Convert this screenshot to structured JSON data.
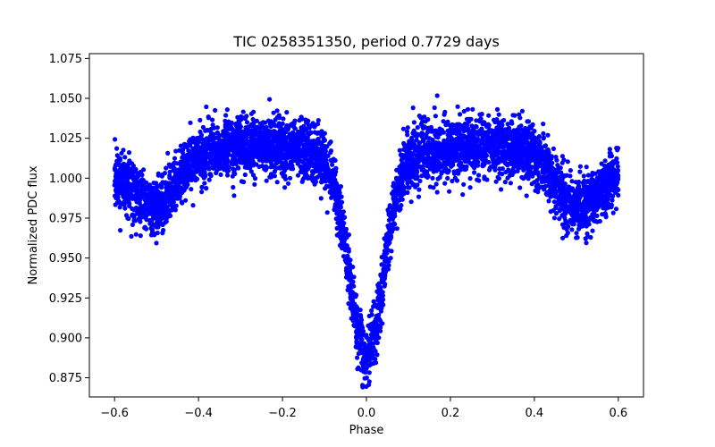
{
  "chart_data": {
    "type": "scatter",
    "title": "TIC 0258351350, period 0.7729 days",
    "xlabel": "Phase",
    "ylabel": "Normalized PDC flux",
    "xlim": [
      -0.66,
      0.66
    ],
    "ylim": [
      0.863,
      1.078
    ],
    "xticks": [
      -0.6,
      -0.4,
      -0.2,
      0.0,
      0.2,
      0.4,
      0.6
    ],
    "xtick_labels": [
      "−0.6",
      "−0.4",
      "−0.2",
      "0.0",
      "0.2",
      "0.4",
      "0.6"
    ],
    "yticks": [
      0.875,
      0.9,
      0.925,
      0.95,
      0.975,
      1.0,
      1.025,
      1.05,
      1.075
    ],
    "ytick_labels": [
      "0.875",
      "0.900",
      "0.925",
      "0.950",
      "0.975",
      "1.000",
      "1.025",
      "1.050",
      "1.075"
    ],
    "grid": false,
    "marker_color": "#0000ff",
    "phase_range": [
      -0.6,
      0.6
    ],
    "light_curve_model": {
      "baseline": 1.012,
      "primary_eclipse": {
        "phase": 0.0,
        "depth": 0.118,
        "width": 0.04
      },
      "secondary_eclipse": {
        "phase": 0.5,
        "depth": 0.028,
        "width": 0.045
      },
      "max_light_phase": 0.27,
      "scatter": 0.009
    },
    "series": [
      {
        "x": [
          -0.6,
          -0.55,
          -0.5,
          -0.45,
          -0.4,
          -0.35,
          -0.3,
          -0.25,
          -0.2,
          -0.15,
          -0.1,
          -0.08,
          -0.06,
          -0.04,
          -0.02,
          0.0,
          0.02,
          0.04,
          0.06,
          0.08,
          0.1,
          0.15,
          0.2,
          0.25,
          0.3,
          0.35,
          0.4,
          0.45,
          0.5,
          0.55,
          0.6
        ],
        "y": [
          1.012,
          0.998,
          0.988,
          1.002,
          1.013,
          1.022,
          1.025,
          1.024,
          1.02,
          1.011,
          0.99,
          0.97,
          0.95,
          0.925,
          0.903,
          0.892,
          0.903,
          0.925,
          0.95,
          0.97,
          0.99,
          1.011,
          1.02,
          1.024,
          1.025,
          1.022,
          1.013,
          1.002,
          0.988,
          0.998,
          1.012
        ]
      }
    ]
  }
}
